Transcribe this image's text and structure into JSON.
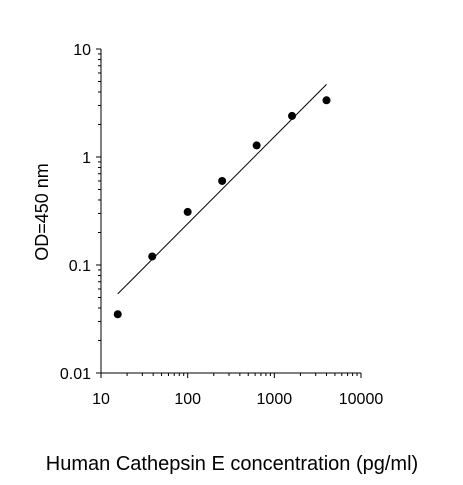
{
  "chart_data": {
    "type": "scatter",
    "title": "",
    "xlabel": "Human Cathepsin E concentration (pg/ml)",
    "ylabel": "OD=450 nm",
    "xscale": "log",
    "yscale": "log",
    "xlim": [
      10,
      10000
    ],
    "ylim": [
      0.01,
      10
    ],
    "xticks": [
      {
        "value": 10,
        "label": "10"
      },
      {
        "value": 100,
        "label": "100"
      },
      {
        "value": 1000,
        "label": "1000"
      },
      {
        "value": 10000,
        "label": "10000"
      }
    ],
    "yticks": [
      {
        "value": 0.01,
        "label": "0.01"
      },
      {
        "value": 0.1,
        "label": "0.1"
      },
      {
        "value": 1,
        "label": "1"
      },
      {
        "value": 10,
        "label": "10"
      }
    ],
    "grid": false,
    "legend": "none",
    "series": [
      {
        "x": [
          15.6,
          39,
          100,
          250,
          625,
          1600,
          4000
        ],
        "y": [
          0.035,
          0.12,
          0.31,
          0.6,
          1.28,
          2.4,
          3.35
        ]
      }
    ],
    "fit_line": {
      "x": [
        15.6,
        4000
      ],
      "y": [
        0.054,
        4.7
      ]
    },
    "colors": {
      "points": "#000000",
      "fit": "#000000",
      "axes": "#000000"
    }
  }
}
